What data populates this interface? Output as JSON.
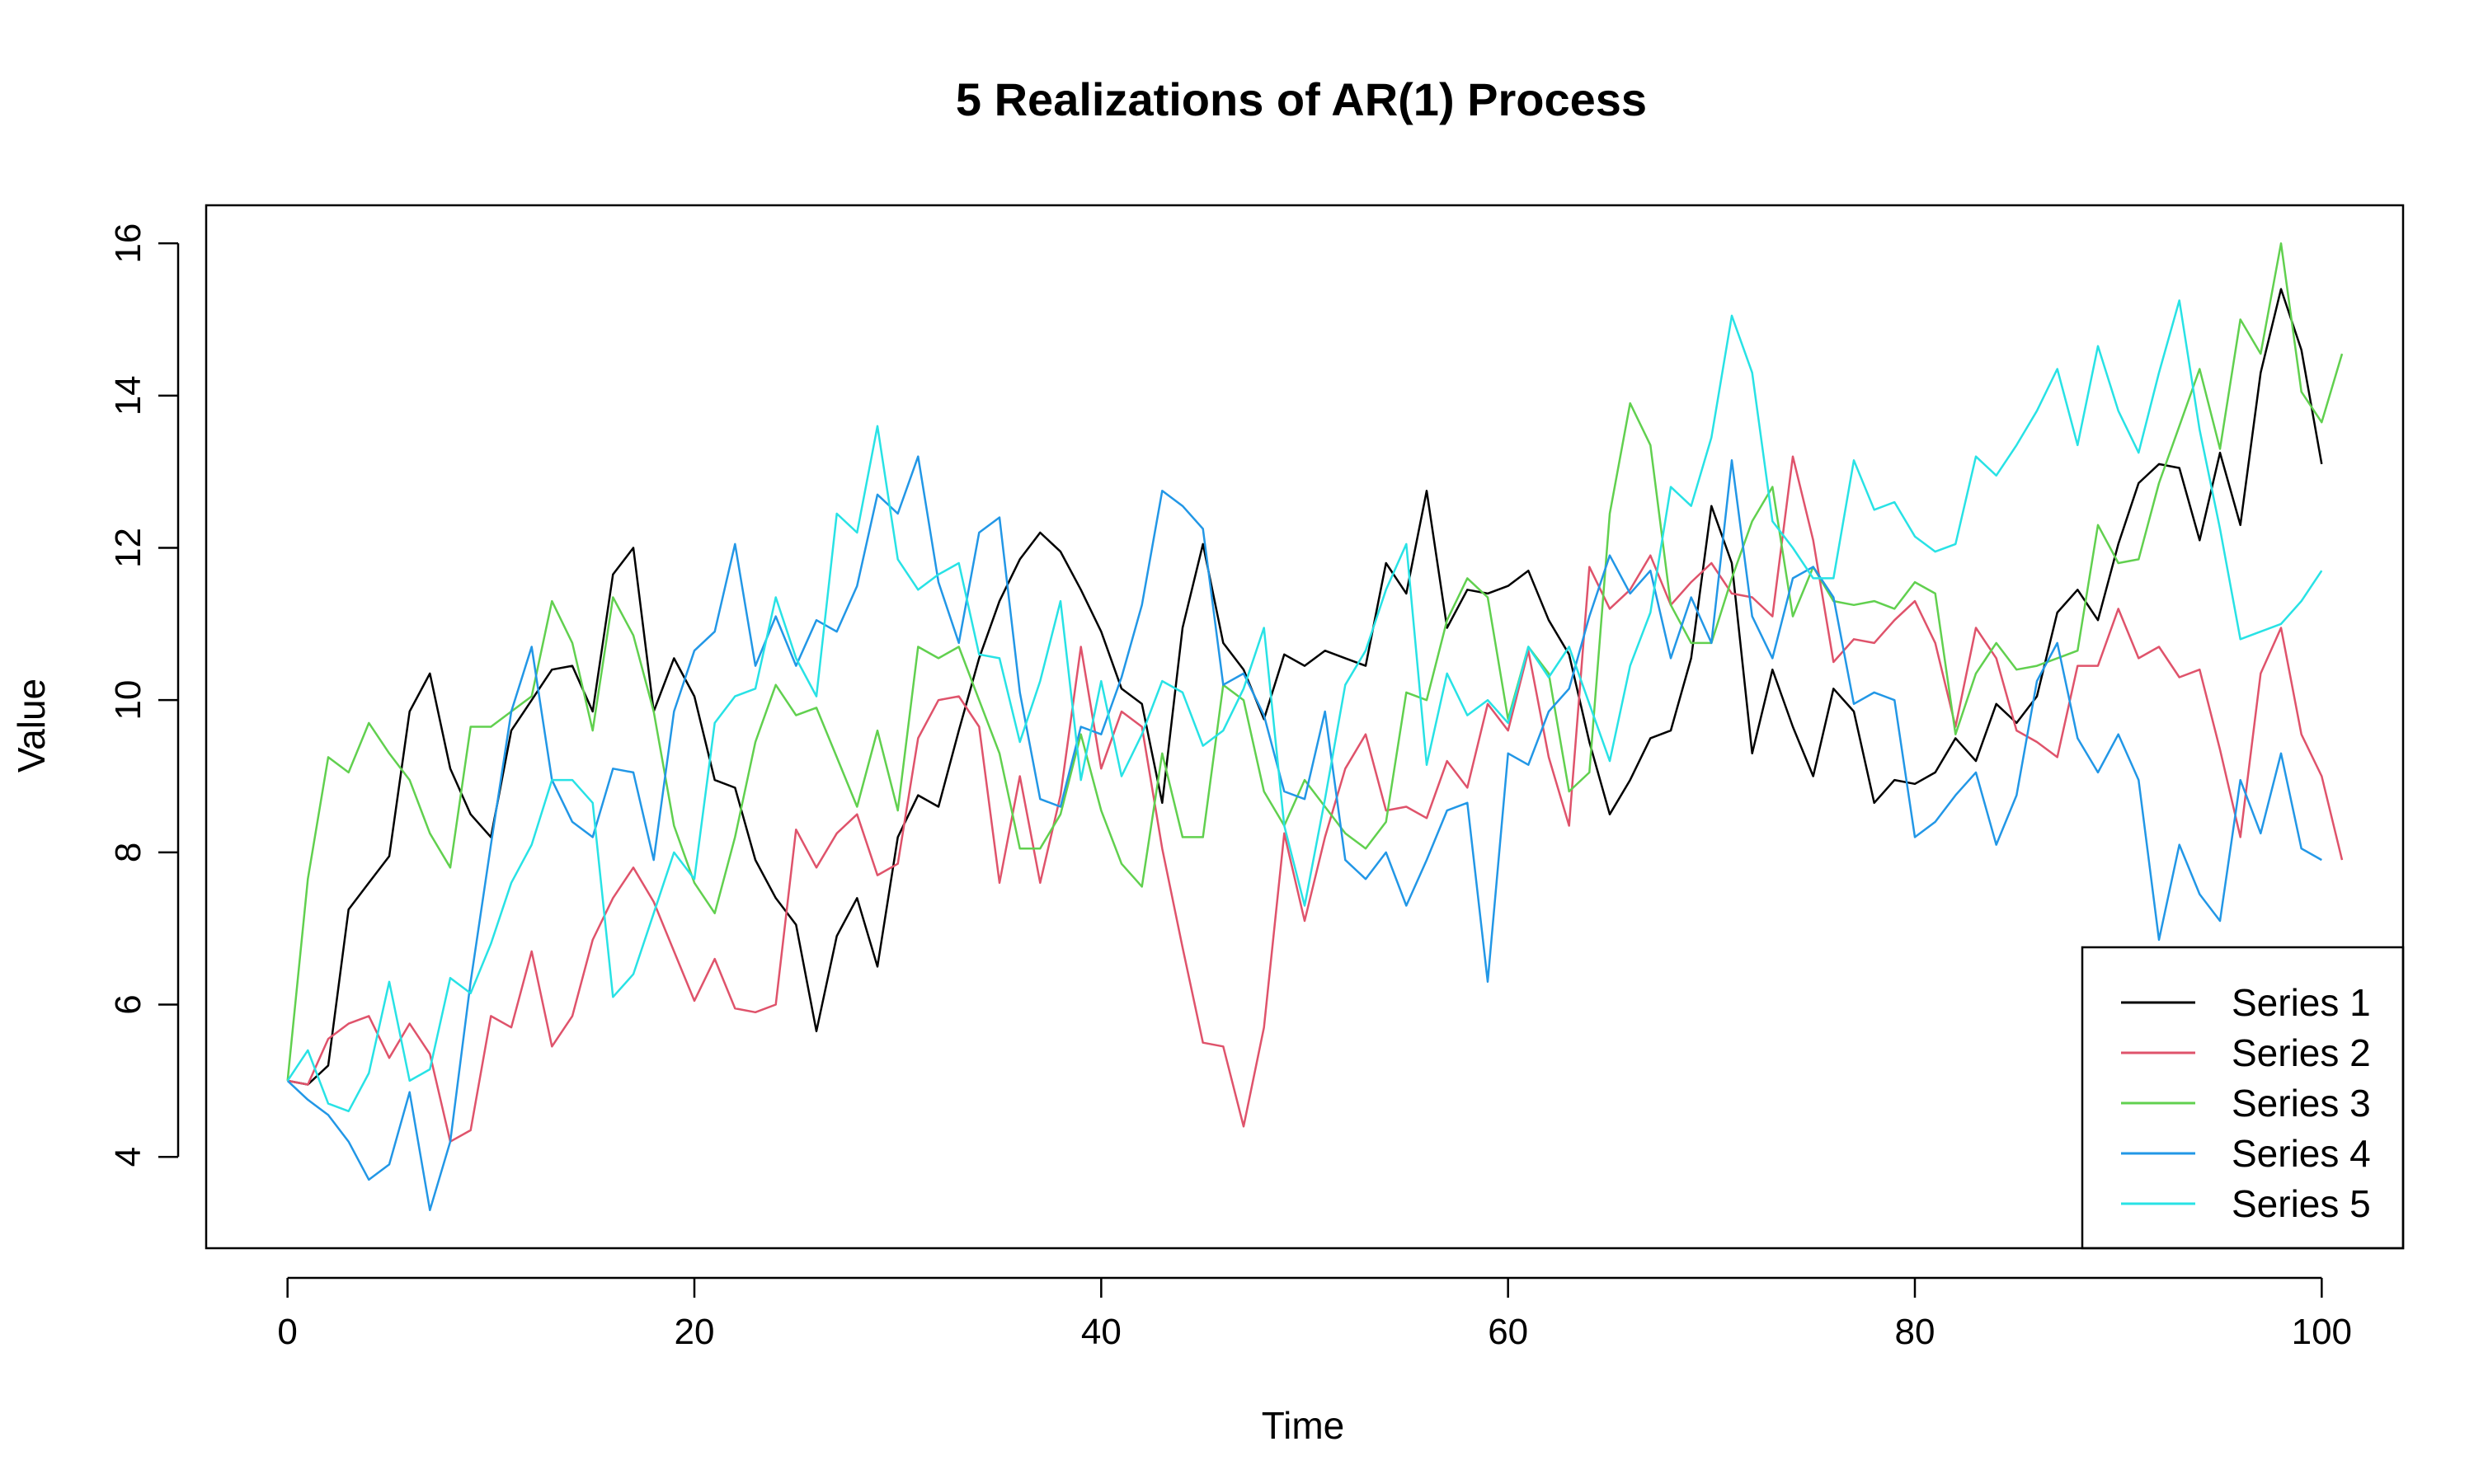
{
  "chart_data": {
    "type": "line",
    "title": "5 Realizations of AR(1) Process",
    "xlabel": "Time",
    "ylabel": "Value",
    "xlim": [
      -4,
      104
    ],
    "ylim": [
      2.8,
      16.5
    ],
    "xticks": [
      0,
      20,
      40,
      60,
      80,
      100
    ],
    "yticks": [
      4,
      6,
      8,
      10,
      12,
      14,
      16
    ],
    "legend_position": "bottom-right",
    "grid": false,
    "x_start": 0,
    "series": [
      {
        "name": "Series 1",
        "color": "#000000",
        "values": [
          5.0,
          4.95,
          5.2,
          7.25,
          7.6,
          7.95,
          9.85,
          10.35,
          9.1,
          8.5,
          8.2,
          9.6,
          10.0,
          10.4,
          10.45,
          9.85,
          11.65,
          12.0,
          9.85,
          10.55,
          10.05,
          8.95,
          8.85,
          7.9,
          7.4,
          7.05,
          5.65,
          6.9,
          7.4,
          6.5,
          8.2,
          8.75,
          8.6,
          9.6,
          10.55,
          11.3,
          11.85,
          12.2,
          11.95,
          11.45,
          10.9,
          10.15,
          9.95,
          8.65,
          10.95,
          12.05,
          10.75,
          10.4,
          9.75,
          10.6,
          10.45,
          10.65,
          10.55,
          10.45,
          11.8,
          11.4,
          12.75,
          10.95,
          11.45,
          11.4,
          11.5,
          11.7,
          11.05,
          10.6,
          9.45,
          8.5,
          8.95,
          9.5,
          9.6,
          10.55,
          12.55,
          11.8,
          9.3,
          10.4,
          9.65,
          9.0,
          10.15,
          9.85,
          8.65,
          8.95,
          8.9,
          9.05,
          9.5,
          9.2,
          9.95,
          9.7,
          10.05,
          11.15,
          11.45,
          11.05,
          12.05,
          12.85,
          13.1,
          13.05,
          12.1,
          13.25,
          12.3,
          14.3,
          15.4,
          14.6,
          13.1
        ]
      },
      {
        "name": "Series 2",
        "color": "#DF536B",
        "values": [
          5.0,
          4.95,
          5.55,
          5.75,
          5.85,
          5.3,
          5.75,
          5.35,
          4.2,
          4.35,
          5.85,
          5.7,
          6.7,
          5.45,
          5.85,
          6.85,
          7.4,
          7.8,
          7.35,
          6.7,
          6.05,
          6.6,
          5.95,
          5.9,
          6.0,
          8.3,
          7.8,
          8.25,
          8.5,
          7.7,
          7.85,
          9.5,
          10.0,
          10.05,
          9.65,
          7.6,
          9.0,
          7.6,
          8.75,
          10.7,
          9.1,
          9.85,
          9.65,
          8.05,
          6.75,
          5.5,
          5.45,
          4.4,
          5.7,
          8.25,
          7.1,
          8.2,
          9.1,
          9.55,
          8.55,
          8.6,
          8.45,
          9.2,
          8.85,
          9.95,
          9.6,
          10.65,
          9.25,
          8.35,
          11.75,
          11.2,
          11.45,
          11.9,
          11.25,
          11.55,
          11.8,
          11.4,
          11.35,
          11.1,
          13.2,
          12.1,
          10.5,
          10.8,
          10.75,
          11.05,
          11.3,
          10.75,
          9.65,
          10.95,
          10.55,
          9.6,
          9.45,
          9.25,
          10.45,
          10.45,
          11.2,
          10.55,
          10.7,
          10.3,
          10.4,
          9.35,
          8.2,
          10.35,
          10.95,
          9.55,
          9.0,
          7.9
        ]
      },
      {
        "name": "Series 3",
        "color": "#61D04F",
        "values": [
          5.0,
          7.65,
          9.25,
          9.05,
          9.7,
          9.3,
          8.95,
          8.25,
          7.8,
          9.65,
          9.65,
          9.85,
          10.05,
          11.3,
          10.75,
          9.6,
          11.35,
          10.85,
          9.85,
          8.35,
          7.6,
          7.2,
          8.2,
          9.45,
          10.2,
          9.8,
          9.9,
          9.25,
          8.6,
          9.6,
          8.55,
          10.7,
          10.55,
          10.7,
          10.0,
          9.3,
          8.05,
          8.05,
          8.5,
          9.55,
          8.55,
          7.85,
          7.55,
          9.3,
          8.2,
          8.2,
          10.2,
          10.0,
          8.8,
          8.35,
          8.95,
          8.6,
          8.25,
          8.05,
          8.4,
          10.1,
          10.0,
          11.05,
          11.6,
          11.35,
          9.75,
          10.7,
          10.35,
          8.8,
          9.05,
          12.45,
          13.9,
          13.35,
          11.25,
          10.75,
          10.75,
          11.6,
          12.35,
          12.8,
          11.1,
          11.75,
          11.3,
          11.25,
          11.3,
          11.2,
          11.55,
          11.4,
          9.55,
          10.35,
          10.75,
          10.4,
          10.45,
          10.55,
          10.65,
          12.3,
          11.8,
          11.85,
          12.85,
          13.6,
          14.35,
          13.3,
          15.0,
          14.55,
          16.0,
          14.05,
          13.65,
          14.55
        ]
      },
      {
        "name": "Series 4",
        "color": "#2297E6",
        "values": [
          5.0,
          4.75,
          4.55,
          4.2,
          3.7,
          3.9,
          4.85,
          3.3,
          4.2,
          6.3,
          8.1,
          9.85,
          10.7,
          8.95,
          8.4,
          8.2,
          9.1,
          9.05,
          7.9,
          9.85,
          10.65,
          10.9,
          12.05,
          10.45,
          11.1,
          10.45,
          11.05,
          10.9,
          11.5,
          12.7,
          12.45,
          13.2,
          11.55,
          10.75,
          12.2,
          12.4,
          10.1,
          8.7,
          8.6,
          9.65,
          9.55,
          10.3,
          11.25,
          12.75,
          12.55,
          12.25,
          10.2,
          10.35,
          9.8,
          8.8,
          8.7,
          9.85,
          7.9,
          7.65,
          8.0,
          7.3,
          7.9,
          8.55,
          8.65,
          6.3,
          9.3,
          9.15,
          9.85,
          10.15,
          11.1,
          11.9,
          11.4,
          11.7,
          10.55,
          11.35,
          10.75,
          13.15,
          11.1,
          10.55,
          11.6,
          11.75,
          11.35,
          9.95,
          10.1,
          10.0,
          8.2,
          8.4,
          8.75,
          9.05,
          8.1,
          8.75,
          10.25,
          10.75,
          9.5,
          9.05,
          9.55,
          8.95,
          6.85,
          8.1,
          7.45,
          7.1,
          8.95,
          8.25,
          9.3,
          8.05,
          7.9
        ]
      },
      {
        "name": "Series 5",
        "color": "#28E2E5",
        "values": [
          5.0,
          5.4,
          4.7,
          4.6,
          5.1,
          6.3,
          5.0,
          5.15,
          6.35,
          6.15,
          6.8,
          7.6,
          8.1,
          8.95,
          8.95,
          8.65,
          6.1,
          6.4,
          7.2,
          8.0,
          7.65,
          9.7,
          10.05,
          10.15,
          11.35,
          10.55,
          10.05,
          12.45,
          12.2,
          13.6,
          11.85,
          11.45,
          11.65,
          11.8,
          10.6,
          10.55,
          9.45,
          10.25,
          11.3,
          8.95,
          10.25,
          9.0,
          9.55,
          10.25,
          10.1,
          9.4,
          9.6,
          10.15,
          10.95,
          8.35,
          7.3,
          8.7,
          10.2,
          10.65,
          11.45,
          12.05,
          9.15,
          10.35,
          9.8,
          10.0,
          9.7,
          10.7,
          10.3,
          10.7,
          9.95,
          9.2,
          10.45,
          11.15,
          12.8,
          12.55,
          13.45,
          15.05,
          14.3,
          12.35,
          12.0,
          11.6,
          11.6,
          13.15,
          12.5,
          12.6,
          12.15,
          11.95,
          12.05,
          13.2,
          12.95,
          13.35,
          13.8,
          14.35,
          13.35,
          14.65,
          13.8,
          13.25,
          14.3,
          15.25,
          13.55,
          12.25,
          10.8,
          10.9,
          11.0,
          11.3,
          11.7
        ]
      }
    ]
  }
}
